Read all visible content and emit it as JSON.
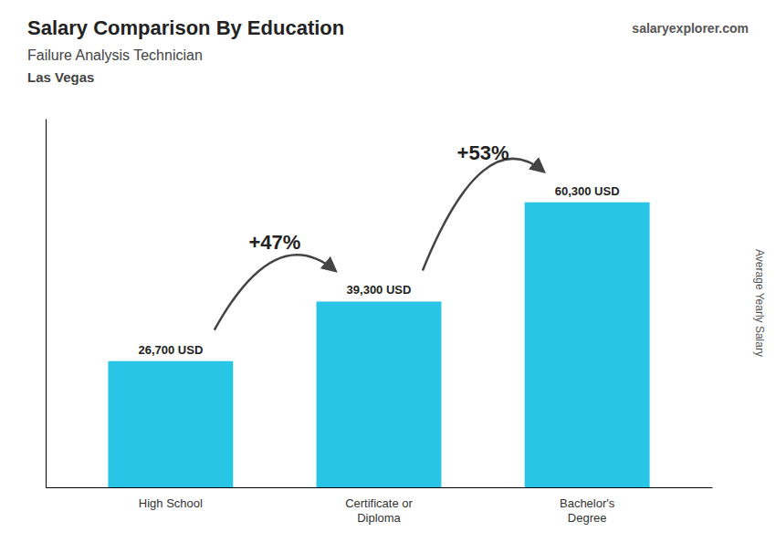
{
  "chart_data": {
    "type": "bar",
    "title": "Salary Comparison By Education",
    "subtitle": [
      "Failure Analysis Technician",
      "Las Vegas"
    ],
    "brand": [
      "salary",
      "explorer",
      ".com"
    ],
    "y_label": "Average Yearly Salary",
    "categories": [
      "High School",
      "Certificate or\nDiploma",
      "Bachelor's\nDegree"
    ],
    "values": [
      26700,
      39300,
      60300
    ],
    "value_labels": [
      "26,700 USD",
      "39,300 USD",
      "60,300 USD"
    ],
    "data_labels": true,
    "annotations": [
      "+47%",
      "+53%"
    ],
    "color": "#29c5e6",
    "ylim": [
      0,
      78000
    ],
    "tick_labels": "x",
    "grid": false
  }
}
